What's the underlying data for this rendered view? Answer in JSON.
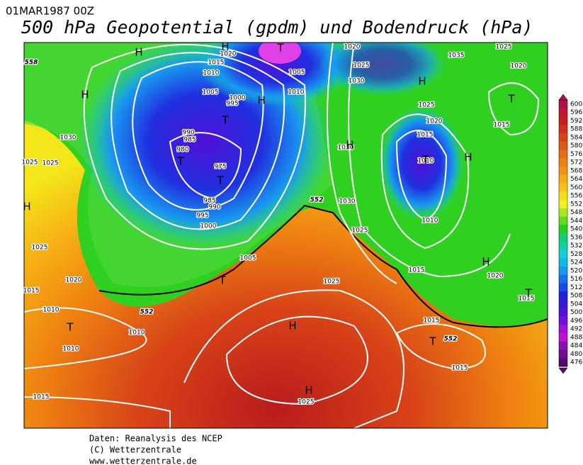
{
  "header": {
    "date": "01MAR1987 00Z",
    "title": "500 hPa Geopotential (gpdm) und Bodendruck (hPa)"
  },
  "map": {
    "pressure_labels": [
      "1020",
      "1015",
      "1010",
      "1005",
      "1000",
      "995",
      "990",
      "985",
      "980",
      "975",
      "985",
      "990",
      "995",
      "1000",
      "1005",
      "1005",
      "1010",
      "1020",
      "1025",
      "1030",
      "1035",
      "1025",
      "1020",
      "1025",
      "1020",
      "1015",
      "1010",
      "1015",
      "1010",
      "1030",
      "1025",
      "1015",
      "1020",
      "1015",
      "1015",
      "1015",
      "1025",
      "1025",
      "1030",
      "1025",
      "1025",
      "1025",
      "1020",
      "1015",
      "1010",
      "1010",
      "1010",
      "1015",
      "1030"
    ],
    "height_labels": [
      "558",
      "552",
      "552",
      "552"
    ],
    "centers": [
      "H",
      "H",
      "T",
      "H",
      "H",
      "T",
      "T",
      "T",
      "H",
      "T",
      "H",
      "T",
      "H",
      "H",
      "H",
      "T",
      "T",
      "H",
      "T",
      "H",
      "T"
    ]
  },
  "colorbar": {
    "levels": [
      600,
      596,
      592,
      588,
      584,
      580,
      576,
      572,
      568,
      564,
      560,
      556,
      552,
      548,
      544,
      540,
      536,
      532,
      528,
      524,
      520,
      516,
      512,
      508,
      504,
      500,
      496,
      492,
      488,
      484,
      480,
      476
    ],
    "colors": [
      "#b0104a",
      "#c01430",
      "#c81e1e",
      "#d03020",
      "#d84418",
      "#e05814",
      "#e86c10",
      "#ee8010",
      "#f29412",
      "#f6aa14",
      "#f8c018",
      "#f8dc18",
      "#f4f01a",
      "#a8e81e",
      "#60dc20",
      "#20d020",
      "#10d070",
      "#10d0a8",
      "#10d0d0",
      "#10b8e8",
      "#1498f0",
      "#1870f0",
      "#1c48e8",
      "#2020e0",
      "#3818d8",
      "#5010d8",
      "#7010d8",
      "#a010d8",
      "#c010d0",
      "#8c10b0",
      "#6c0c90",
      "#500870"
    ]
  },
  "footer": {
    "lines": [
      "Daten: Reanalysis des NCEP",
      "(C) Wetterzentrale",
      "www.wetterzentrale.de"
    ]
  }
}
